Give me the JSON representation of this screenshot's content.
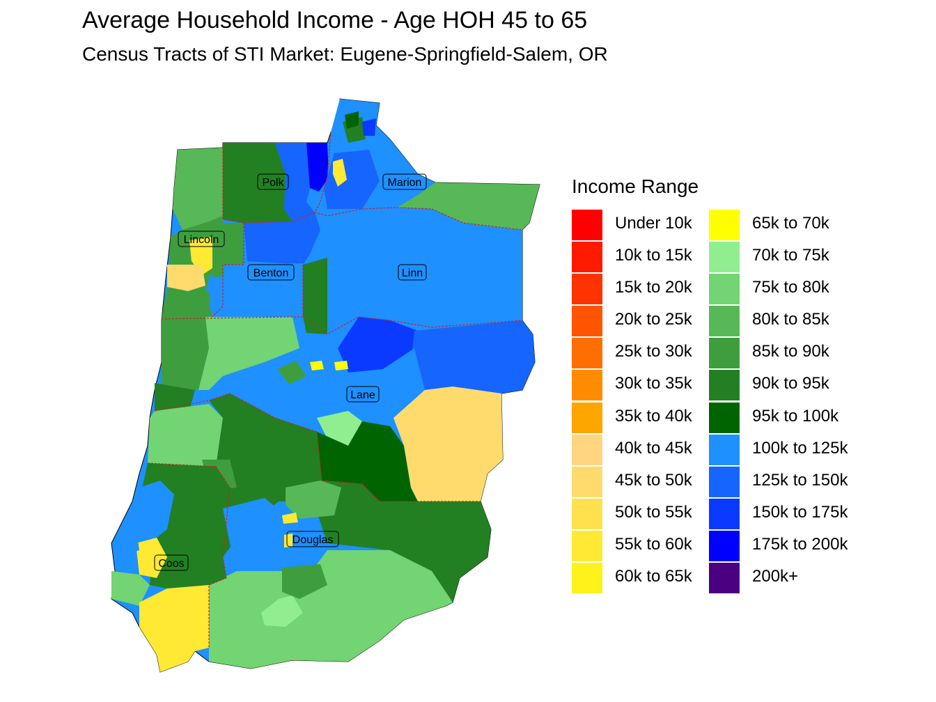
{
  "title": "Average Household Income - Age HOH 45 to 65",
  "subtitle": "Census Tracts of STI Market: Eugene-Springfield-Salem, OR",
  "legend": {
    "title": "Income Range",
    "items": [
      {
        "label": "Under 10k",
        "color": "#FF0000"
      },
      {
        "label": "10k to 15k",
        "color": "#FF1A00"
      },
      {
        "label": "15k to 20k",
        "color": "#FF3300"
      },
      {
        "label": "20k to 25k",
        "color": "#FF5500"
      },
      {
        "label": "25k to 30k",
        "color": "#FF6E00"
      },
      {
        "label": "30k to 35k",
        "color": "#FF8C00"
      },
      {
        "label": "35k to 40k",
        "color": "#FFA500"
      },
      {
        "label": "40k to 45k",
        "color": "#FFD580"
      },
      {
        "label": "45k to 50k",
        "color": "#FFDB6E"
      },
      {
        "label": "50k to 55k",
        "color": "#FFE14D"
      },
      {
        "label": "55k to 60k",
        "color": "#FFE933"
      },
      {
        "label": "60k to 65k",
        "color": "#FFF21A"
      },
      {
        "label": "65k to 70k",
        "color": "#FFFF00"
      },
      {
        "label": "70k to 75k",
        "color": "#90EE90"
      },
      {
        "label": "75k to 80k",
        "color": "#72D472"
      },
      {
        "label": "80k to 85k",
        "color": "#57B857"
      },
      {
        "label": "85k to 90k",
        "color": "#3E9E3E"
      },
      {
        "label": "90k to 95k",
        "color": "#228022"
      },
      {
        "label": "95k to 100k",
        "color": "#006400"
      },
      {
        "label": "100k to 125k",
        "color": "#1E90FF"
      },
      {
        "label": "125k to 150k",
        "color": "#1665FF"
      },
      {
        "label": "150k to 175k",
        "color": "#0A3AFF"
      },
      {
        "label": "175k to 200k",
        "color": "#0000FF"
      },
      {
        "label": "200k+",
        "color": "#4B0082"
      }
    ]
  },
  "counties": [
    "Polk",
    "Marion",
    "Lincoln",
    "Benton",
    "Linn",
    "Lane",
    "Douglas",
    "Coos"
  ]
}
